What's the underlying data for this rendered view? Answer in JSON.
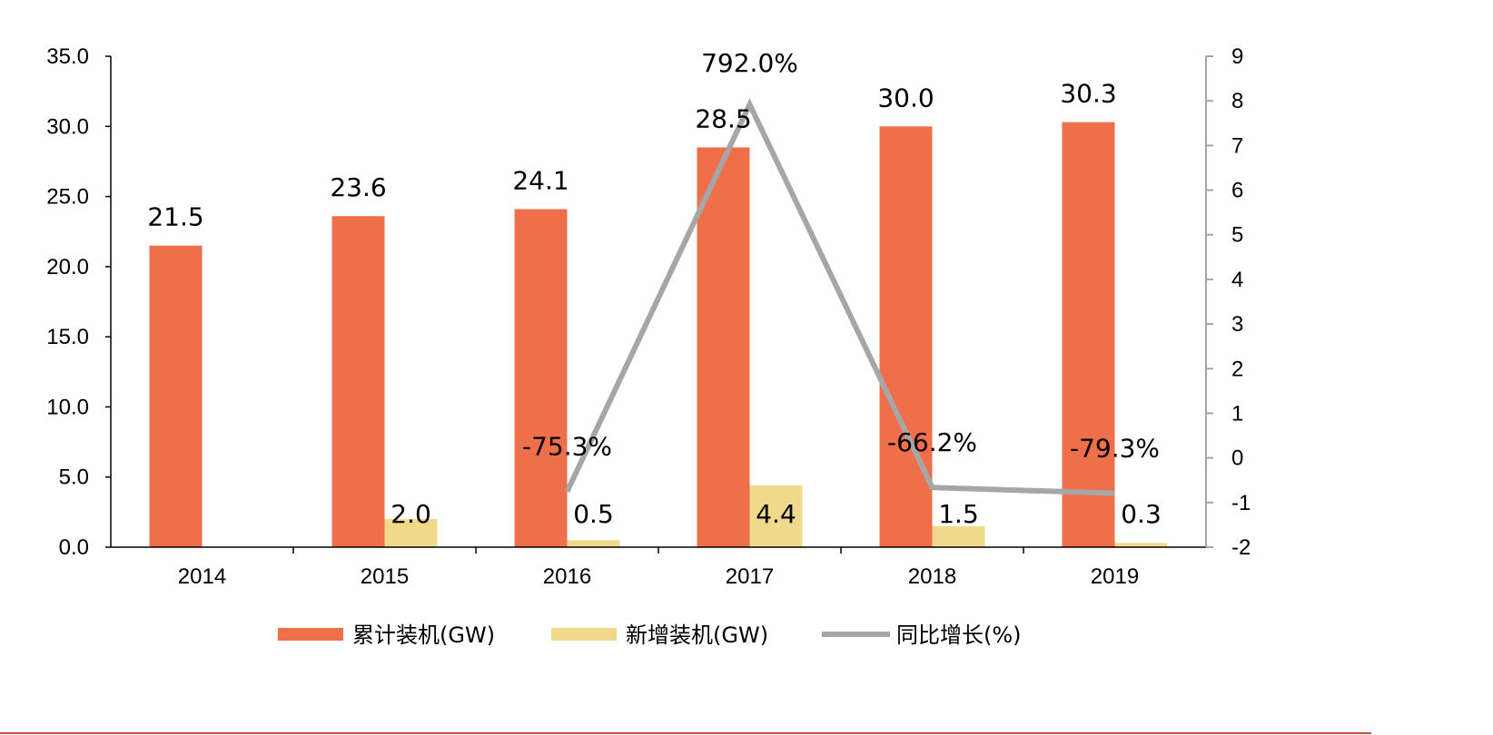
{
  "chart_data": {
    "type": "bar",
    "title": "",
    "categories": [
      "2014",
      "2015",
      "2016",
      "2017",
      "2018",
      "2019"
    ],
    "series": [
      {
        "name": "累计装机(GW)",
        "kind": "bar",
        "axis": "left",
        "color": "#EE6F4A",
        "values": [
          21.5,
          23.6,
          24.1,
          28.5,
          30.0,
          30.3
        ],
        "labels": [
          "21.5",
          "23.6",
          "24.1",
          "28.5",
          "30.0",
          "30.3"
        ]
      },
      {
        "name": "新增装机(GW)",
        "kind": "bar",
        "axis": "left",
        "color": "#F0D98A",
        "values": [
          null,
          2.0,
          0.5,
          4.4,
          1.5,
          0.3
        ],
        "labels": [
          null,
          "2.0",
          "0.5",
          "4.4",
          "1.5",
          "0.3"
        ]
      },
      {
        "name": "同比增长(%)",
        "kind": "line",
        "axis": "right",
        "color": "#A6A6A6",
        "values": [
          null,
          null,
          -0.753,
          7.92,
          -0.662,
          -0.793
        ],
        "labels": [
          null,
          null,
          "-75.3%",
          "792.0%",
          "-66.2%",
          "-79.3%"
        ]
      }
    ],
    "left_axis": {
      "ylim": [
        0,
        35
      ],
      "ticks": [
        "0.0",
        "5.0",
        "10.0",
        "15.0",
        "20.0",
        "25.0",
        "30.0",
        "35.0"
      ]
    },
    "right_axis": {
      "ylim": [
        -2,
        9
      ],
      "ticks": [
        "-2",
        "-1",
        "0",
        "1",
        "2",
        "3",
        "4",
        "5",
        "6",
        "7",
        "8",
        "9"
      ]
    },
    "legend_position": "bottom",
    "grid": false,
    "accent_line_color": "#C0504D"
  }
}
